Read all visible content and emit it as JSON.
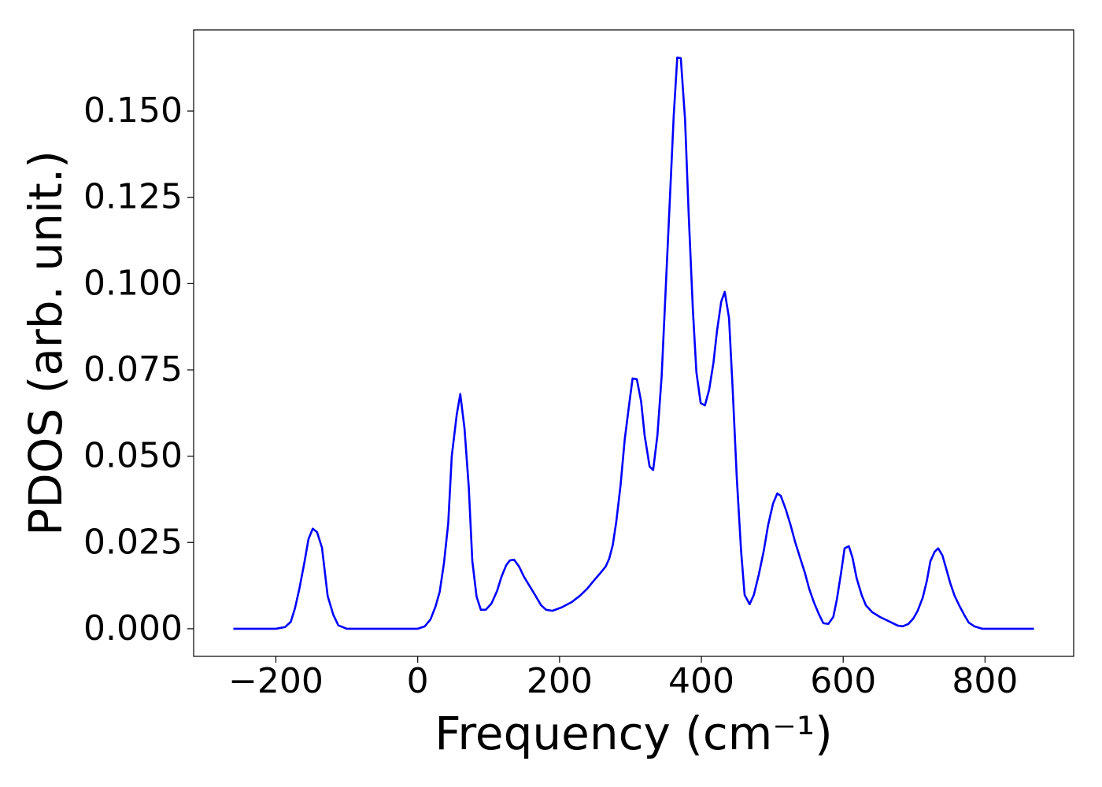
{
  "chart_data": {
    "type": "line",
    "xlabel": "Frequency (cm⁻¹)",
    "ylabel": "PDOS (arb. unit.)",
    "xlim": [
      -316,
      925
    ],
    "ylim": [
      -0.008,
      0.1735
    ],
    "xticks": [
      {
        "value": -200,
        "label": "−200"
      },
      0,
      200,
      400,
      600,
      800
    ],
    "yticks": [
      {
        "value": 0,
        "label": "0.000"
      },
      {
        "value": 0.025,
        "label": "0.025"
      },
      {
        "value": 0.05,
        "label": "0.050"
      },
      {
        "value": 0.075,
        "label": "0.075"
      },
      {
        "value": 0.1,
        "label": "0.100"
      },
      {
        "value": 0.125,
        "label": "0.125"
      },
      {
        "value": 0.15,
        "label": "0.150"
      }
    ],
    "x": [
      -260,
      -200,
      -187,
      -179,
      -173,
      -167,
      -160,
      -154,
      -148,
      -142,
      -135,
      -127,
      -119,
      -112,
      -100,
      0,
      10,
      18,
      25,
      31,
      37,
      43,
      48,
      55,
      60,
      66,
      72,
      77,
      83,
      89,
      96,
      104,
      112,
      118,
      125,
      130,
      136,
      143,
      150,
      158,
      166,
      174,
      181,
      190,
      203,
      217,
      229,
      239,
      249,
      257,
      265,
      270,
      275,
      280,
      286,
      292,
      299,
      303,
      309,
      315,
      320,
      327,
      332,
      338,
      344,
      350,
      356,
      361,
      366,
      371,
      377,
      382,
      388,
      393,
      399,
      405,
      411,
      417,
      422,
      428,
      433,
      439,
      444,
      450,
      456,
      461,
      468,
      474,
      481,
      488,
      494,
      501,
      507,
      512,
      519,
      526,
      532,
      539,
      546,
      552,
      559,
      566,
      572,
      579,
      586,
      591,
      597,
      602,
      608,
      613,
      619,
      626,
      632,
      641,
      652,
      665,
      677,
      684,
      692,
      699,
      705,
      712,
      718,
      723,
      729,
      734,
      740,
      745,
      751,
      757,
      764,
      771,
      777,
      785,
      796,
      869
    ],
    "series": [
      {
        "name": "PDOS",
        "color": "#0000ff",
        "values": [
          0,
          0,
          0.0005,
          0.002,
          0.006,
          0.0115,
          0.019,
          0.026,
          0.029,
          0.028,
          0.0235,
          0.0095,
          0.004,
          0.001,
          0,
          0,
          0.0007,
          0.0027,
          0.0064,
          0.0107,
          0.019,
          0.0305,
          0.05,
          0.062,
          0.068,
          0.058,
          0.041,
          0.0196,
          0.0093,
          0.0055,
          0.0055,
          0.0073,
          0.011,
          0.015,
          0.0185,
          0.0198,
          0.02,
          0.018,
          0.015,
          0.0123,
          0.0096,
          0.0068,
          0.0055,
          0.0052,
          0.0062,
          0.0077,
          0.0096,
          0.0116,
          0.0141,
          0.016,
          0.018,
          0.0203,
          0.0242,
          0.031,
          0.0415,
          0.055,
          0.0663,
          0.0725,
          0.0723,
          0.0659,
          0.056,
          0.047,
          0.046,
          0.056,
          0.0732,
          0.0998,
          0.1263,
          0.1486,
          0.1655,
          0.1653,
          0.1475,
          0.1206,
          0.0925,
          0.0743,
          0.0654,
          0.0647,
          0.0693,
          0.077,
          0.0862,
          0.0948,
          0.0976,
          0.09,
          0.07,
          0.0435,
          0.0226,
          0.0098,
          0.0071,
          0.0098,
          0.0157,
          0.0226,
          0.0299,
          0.0362,
          0.0392,
          0.0385,
          0.0346,
          0.0299,
          0.0253,
          0.0207,
          0.0162,
          0.0116,
          0.0075,
          0.0041,
          0.0016,
          0.0014,
          0.0034,
          0.0084,
          0.0162,
          0.0233,
          0.0239,
          0.0207,
          0.0146,
          0.0098,
          0.0068,
          0.0048,
          0.0034,
          0.0021,
          0.0009,
          0.0007,
          0.0014,
          0.003,
          0.0052,
          0.0089,
          0.0139,
          0.0196,
          0.0223,
          0.0233,
          0.0212,
          0.0176,
          0.0132,
          0.0096,
          0.0066,
          0.0039,
          0.0018,
          0.0007,
          0,
          0
        ]
      }
    ]
  }
}
